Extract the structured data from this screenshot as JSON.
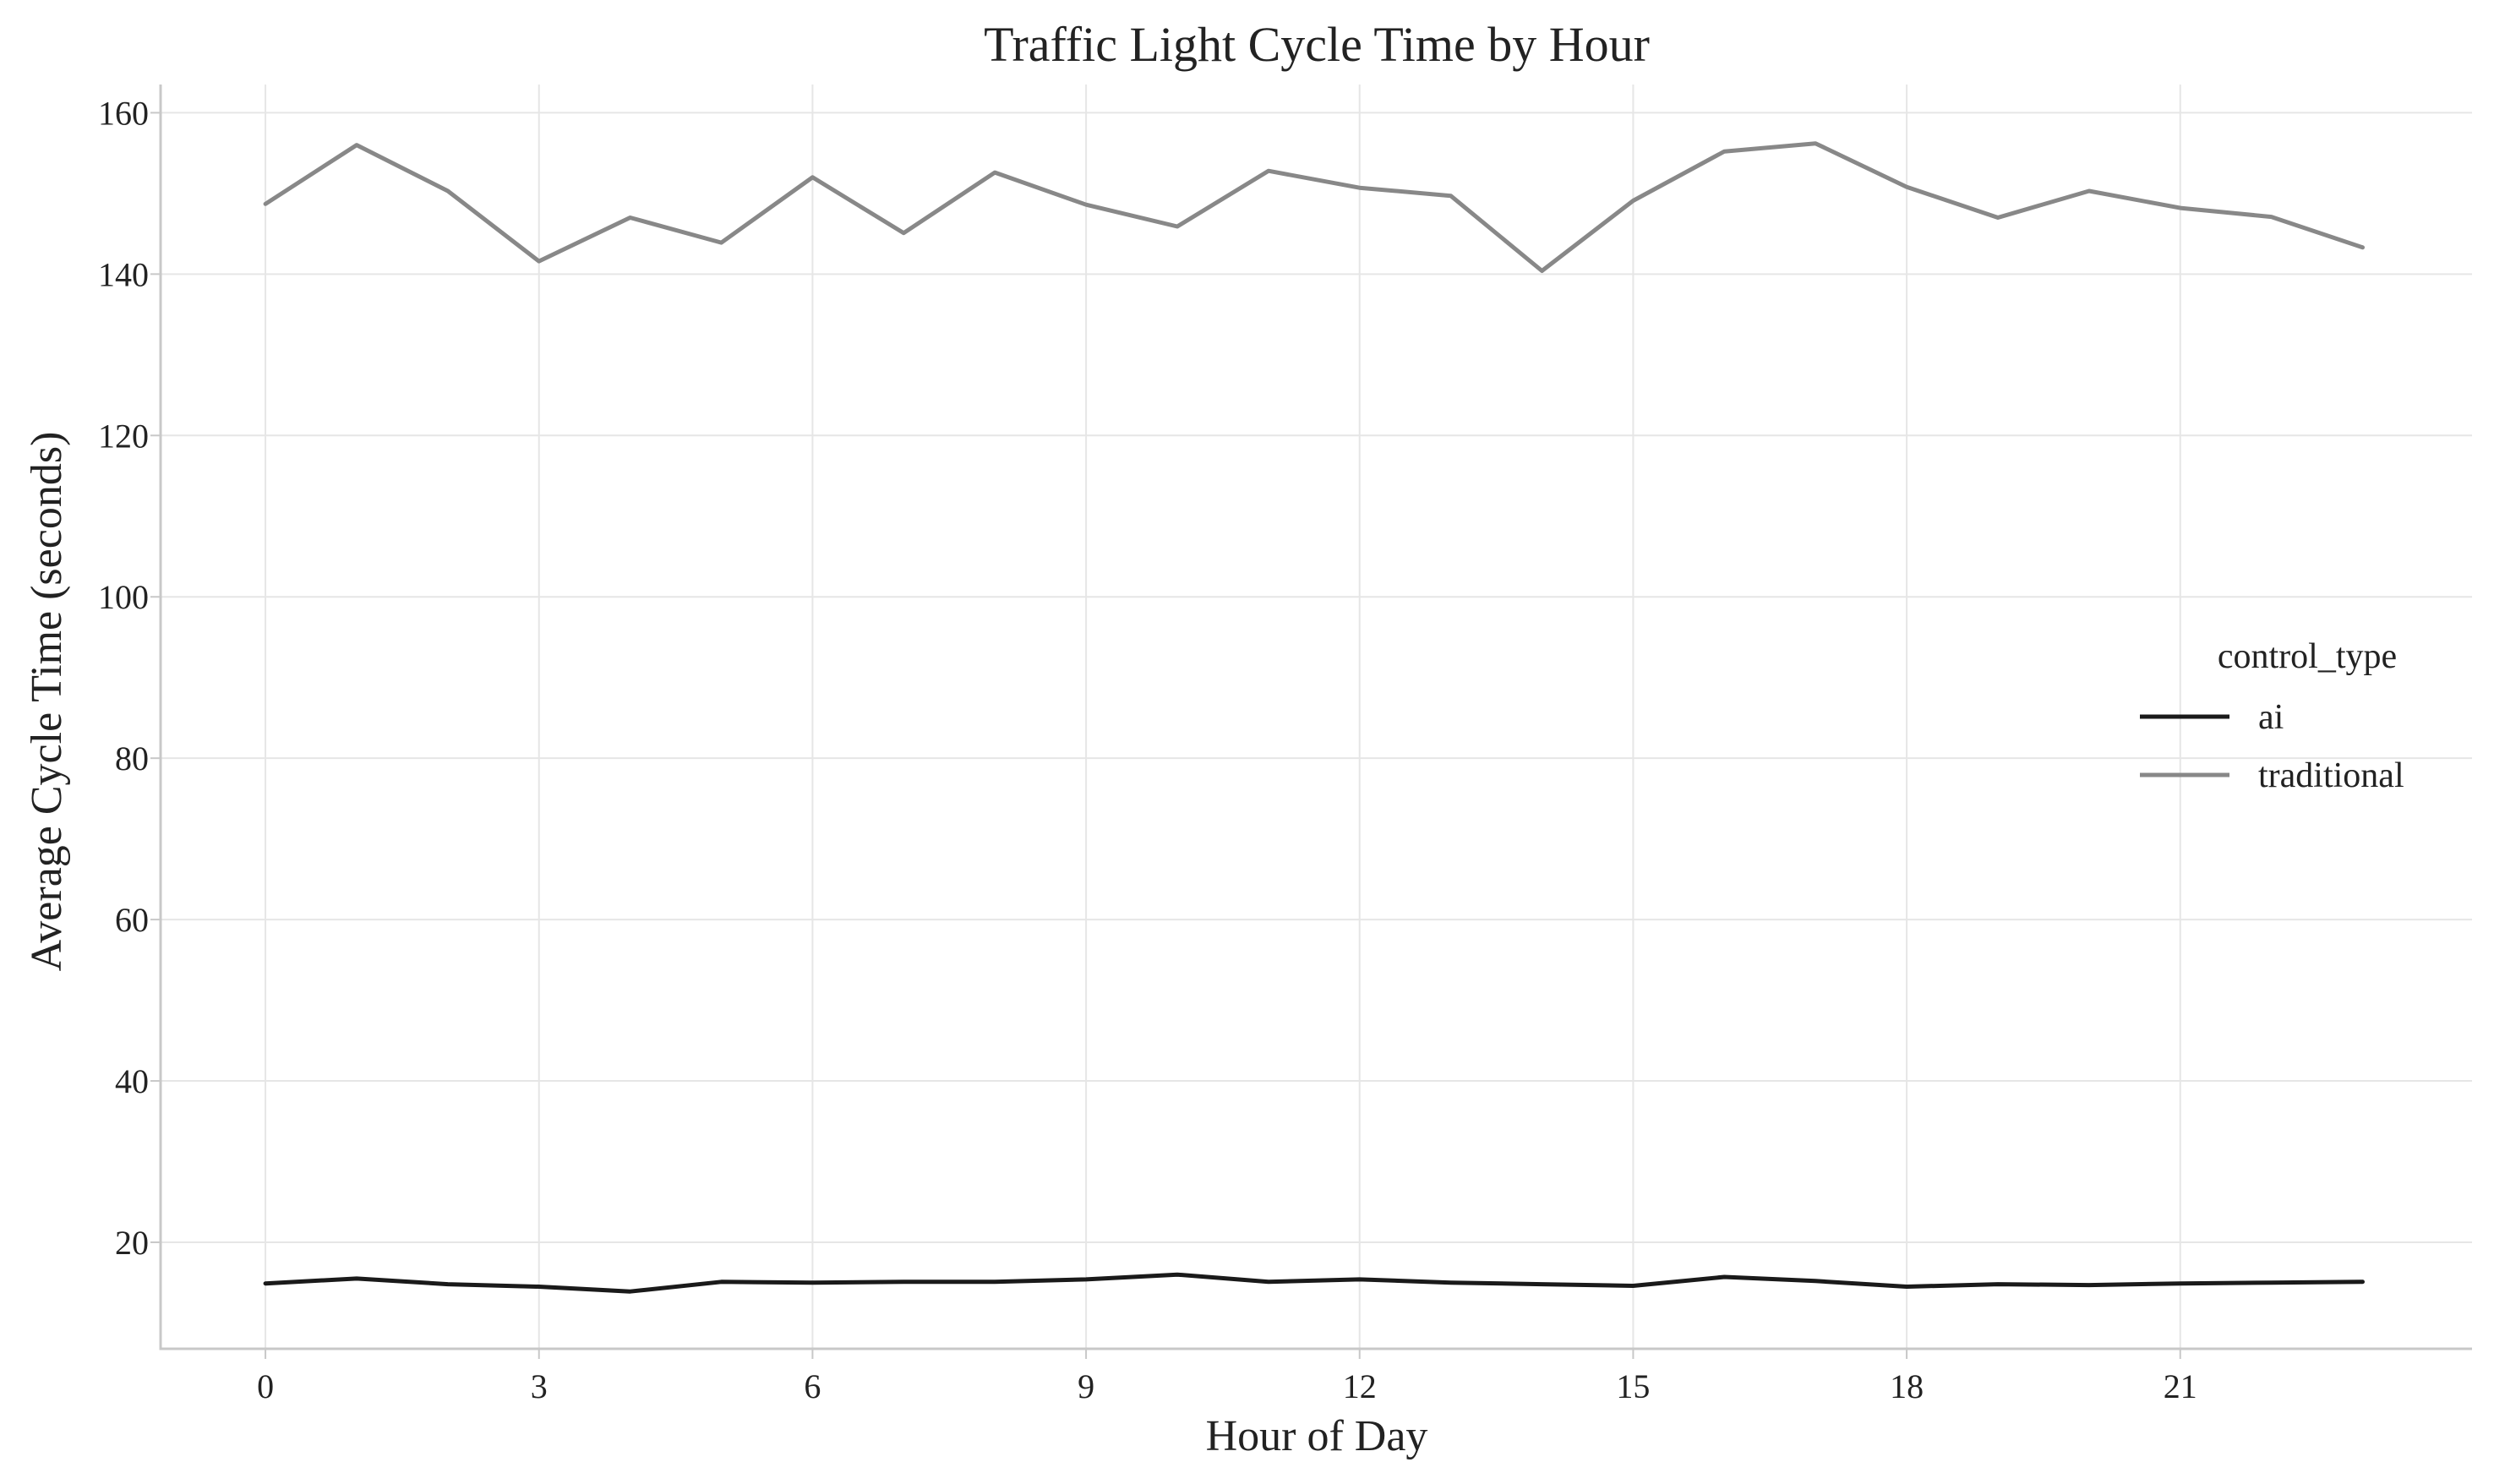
{
  "chart_data": {
    "type": "line",
    "title": "Traffic Light Cycle Time by Hour",
    "xlabel": "Hour of Day",
    "ylabel": "Average Cycle Time (seconds)",
    "x": [
      0,
      1,
      2,
      3,
      4,
      5,
      6,
      7,
      8,
      9,
      10,
      11,
      12,
      13,
      14,
      15,
      16,
      17,
      18,
      19,
      20,
      21,
      22,
      23
    ],
    "xlim": [
      -1.15,
      24.2
    ],
    "ylim": [
      6.8,
      163.5
    ],
    "xticks": [
      0,
      3,
      6,
      9,
      12,
      15,
      18,
      21
    ],
    "yticks": [
      20,
      40,
      60,
      80,
      100,
      120,
      140,
      160
    ],
    "grid": true,
    "legend": {
      "title": "control_type",
      "placement": "center-right"
    },
    "series": [
      {
        "name": "ai",
        "color": "#1a1a1a",
        "values": [
          14.9,
          15.5,
          14.8,
          14.5,
          13.9,
          15.1,
          15.0,
          15.1,
          15.1,
          15.4,
          16.0,
          15.1,
          15.4,
          15.0,
          14.8,
          14.6,
          15.7,
          15.2,
          14.5,
          14.8,
          14.7,
          14.9,
          15.0,
          15.1
        ]
      },
      {
        "name": "traditional",
        "color": "#888888",
        "values": [
          148.7,
          156.0,
          150.3,
          141.6,
          147.0,
          143.9,
          152.0,
          145.1,
          152.6,
          148.6,
          145.9,
          152.8,
          150.7,
          149.7,
          140.4,
          149.1,
          155.2,
          156.2,
          150.8,
          147.0,
          150.3,
          148.2,
          147.1,
          143.3
        ]
      }
    ]
  }
}
